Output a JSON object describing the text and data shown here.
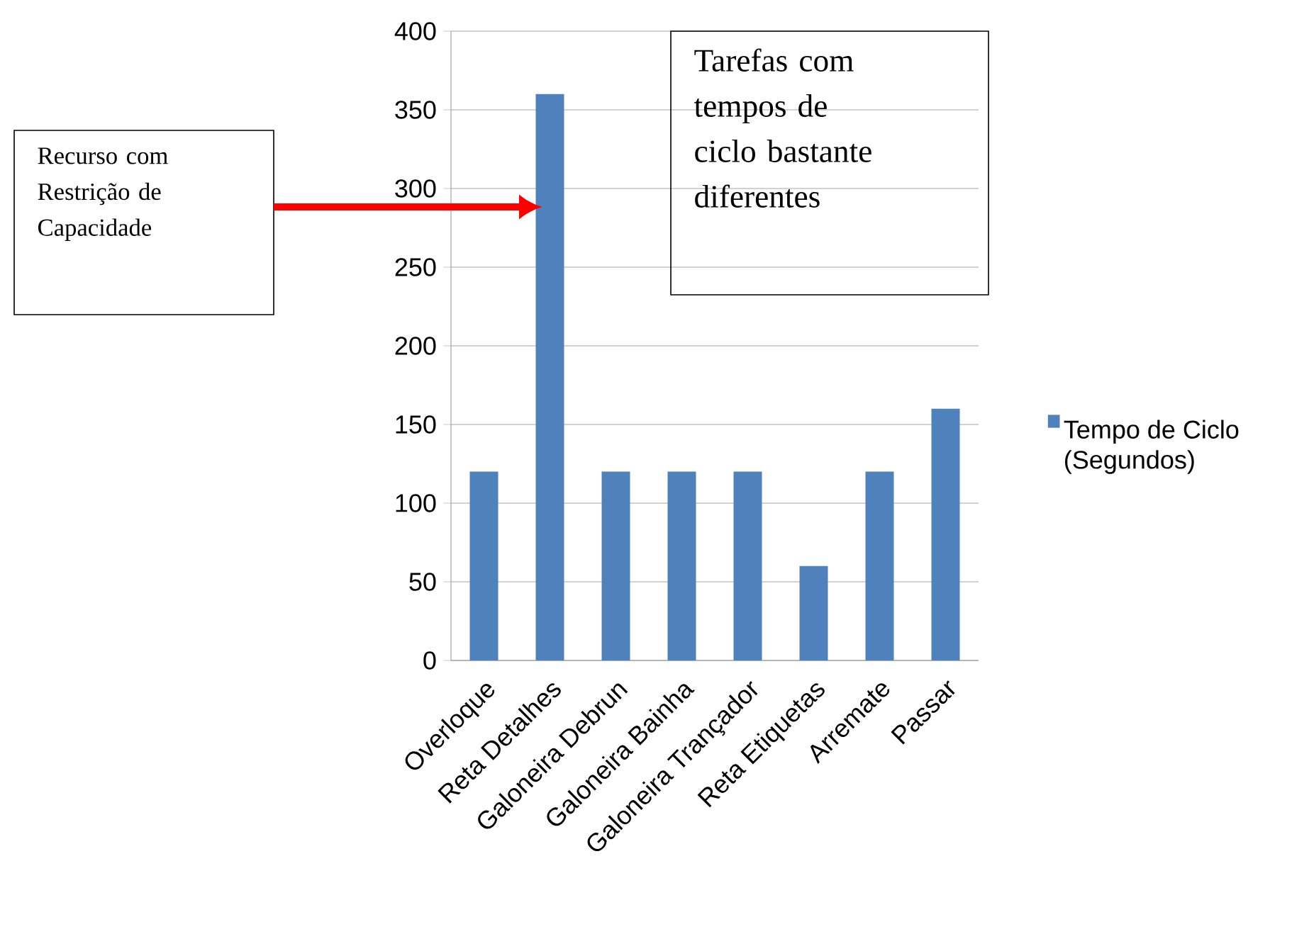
{
  "chart_data": {
    "type": "bar",
    "categories": [
      "Overloque",
      "Reta Detalhes",
      "Galoneira Debrun",
      "Galoneira Bainha",
      "Galoneira Trançador",
      "Reta Etiquetas",
      "Arremate",
      "Passar"
    ],
    "series": [
      {
        "name": "Tempo de Ciclo (Segundos)",
        "color": "#4f81bd",
        "values": [
          120,
          360,
          120,
          120,
          120,
          60,
          120,
          160
        ]
      }
    ],
    "ylim": [
      0,
      400
    ],
    "yticks": [
      0,
      50,
      100,
      150,
      200,
      250,
      300,
      350,
      400
    ],
    "grid": "y",
    "legend": "right",
    "annotations": [
      "Recurso com Restrição de Capacidade",
      "Tarefas com tempos de ciclo bastante diferentes"
    ]
  }
}
